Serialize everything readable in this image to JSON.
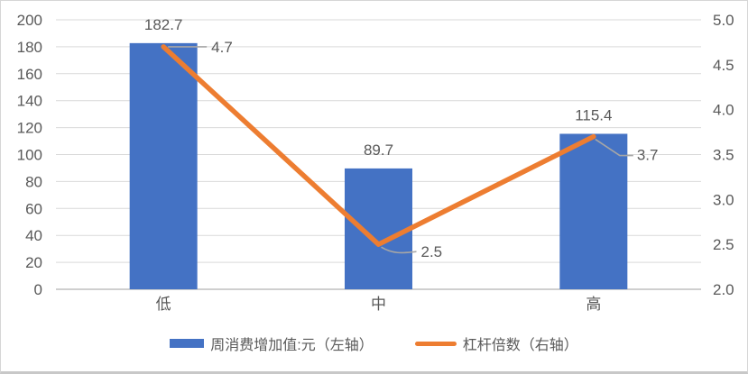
{
  "chart_data": {
    "type": "combo-bar-line",
    "title": "",
    "categories": [
      "低",
      "中",
      "高"
    ],
    "series": [
      {
        "name": "周消费增加值:元（左轴）",
        "type": "bar",
        "axis": "left",
        "color": "#4472C4",
        "values": [
          182.7,
          89.7,
          115.4
        ]
      },
      {
        "name": "杠杆倍数（右轴）",
        "type": "line",
        "axis": "right",
        "color": "#ED7D31",
        "values": [
          4.7,
          2.5,
          3.7
        ]
      }
    ],
    "left_axis": {
      "min": 0,
      "max": 200,
      "step": 20
    },
    "right_axis": {
      "min": 2.0,
      "max": 5.0,
      "step": 0.5
    },
    "grid": true,
    "legend_position": "bottom",
    "colors": {
      "gridline": "#D9D9D9",
      "axis_line": "#BFBFBF",
      "tick_label": "#595959",
      "data_label": "#595959",
      "leader_line": "#A6A6A6",
      "background": "#FFFFFF"
    }
  }
}
